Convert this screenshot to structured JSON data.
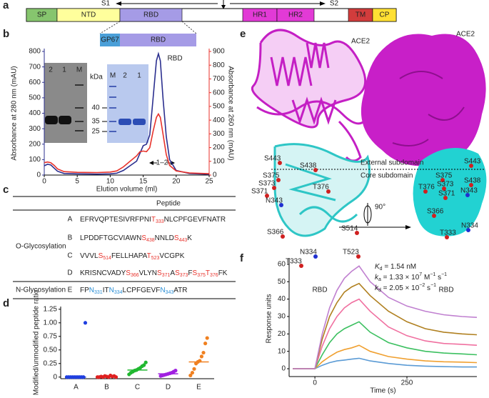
{
  "panel_labels": [
    "a",
    "b",
    "c",
    "d",
    "e",
    "f"
  ],
  "domains": {
    "s1": "S1",
    "s2": "S2",
    "segments": [
      {
        "label": "SP",
        "color": "#86c56e"
      },
      {
        "label": "NTD",
        "color": "#ffff9c"
      },
      {
        "label": "RBD",
        "color": "#a59be6"
      },
      {
        "label": "HR1",
        "color": "#e23ad6"
      },
      {
        "label": "HR2",
        "color": "#e23ad6"
      },
      {
        "label": "TM",
        "color": "#d23c3c"
      },
      {
        "label": "CP",
        "color": "#ffe033"
      }
    ],
    "construct": [
      {
        "label": "GP67",
        "color": "#4a9fd8"
      },
      {
        "label": "RBD",
        "color": "#a59be6"
      }
    ]
  },
  "chart_data": [
    {
      "type": "line",
      "x_label": "Elution volume (ml)",
      "y_label": "Absorbance at 280 nm (mAU)",
      "y2_label": "Absorbance at 260 nm (mAU)",
      "annotation": "RBD",
      "range_label": "1–2",
      "gel_1": {
        "lanes": [
          "2",
          "1",
          "M"
        ],
        "unit": "kDa",
        "markers": [
          40,
          35,
          25
        ]
      },
      "gel_2": {
        "lanes": [
          "M",
          "2",
          "1"
        ]
      },
      "x": [
        0,
        0.5,
        1,
        1.5,
        2,
        3,
        5,
        8,
        10,
        11,
        12,
        13,
        14,
        14.5,
        15,
        15.5,
        16,
        16.5,
        17,
        17.3,
        17.6,
        18,
        18.5,
        19,
        20,
        22,
        25
      ],
      "series": [
        {
          "color": "#2b2f8f",
          "values": [
            60,
            70,
            65,
            45,
            25,
            10,
            8,
            6,
            8,
            12,
            30,
            60,
            90,
            140,
            190,
            200,
            260,
            500,
            740,
            785,
            740,
            500,
            250,
            100,
            30,
            10,
            5
          ]
        },
        {
          "color": "#e8322b",
          "axis": "y2",
          "values": [
            90,
            95,
            90,
            70,
            45,
            25,
            20,
            18,
            22,
            30,
            60,
            100,
            140,
            170,
            175,
            170,
            200,
            320,
            420,
            445,
            420,
            300,
            150,
            70,
            30,
            15,
            10
          ]
        }
      ],
      "xlim": [
        0,
        25
      ],
      "xticks": [
        0,
        5,
        10,
        15,
        20,
        25
      ],
      "ylim": [
        0,
        800
      ],
      "yticks": [
        0,
        100,
        200,
        300,
        400,
        500,
        600,
        700,
        800
      ],
      "y2lim": [
        0,
        900
      ],
      "y2ticks": [
        0,
        100,
        200,
        300,
        400,
        500,
        600,
        700,
        800,
        900
      ]
    },
    {
      "type": "strip",
      "y_label": "Modified/unmodified peptide ratio",
      "categories": [
        "A",
        "B",
        "C",
        "D",
        "E"
      ],
      "colors": [
        "#1f3fe0",
        "#e02020",
        "#20b830",
        "#a020e0",
        "#f08020"
      ],
      "values": [
        [
          0,
          0,
          0,
          0,
          0,
          0,
          0,
          0,
          0,
          0,
          1.0
        ],
        [
          0,
          0,
          0.01,
          0,
          0.02,
          0.01,
          0,
          0.03,
          0.01,
          0.02,
          0
        ],
        [
          0.05,
          0.08,
          0.1,
          0.12,
          0.13,
          0.15,
          0.17,
          0.2,
          0.22,
          0.27
        ],
        [
          0.02,
          0.03,
          0.04,
          0.05,
          0.06,
          0.07,
          0.08,
          0.1,
          0.12
        ],
        [
          0.03,
          0.08,
          0.15,
          0.25,
          0.28,
          0.3,
          0.38,
          0.45,
          0.62,
          0.72
        ]
      ],
      "medians": [
        0,
        0.01,
        0.13,
        0.06,
        0.28
      ],
      "ylim": [
        -0.03,
        1.3
      ],
      "yticks": [
        0,
        0.25,
        {
          "value": 0.5,
          "label": "0.50"
        },
        0.75,
        {
          "value": 1,
          "label": "1.00"
        },
        1.25
      ]
    },
    {
      "type": "line",
      "x_label": "Time (s)",
      "y_label": "Response units",
      "annotations": [
        [
          "K",
          "d",
          " = 1.54 nM"
        ],
        [
          "k",
          "a",
          " = 1.33 × 10",
          "7",
          " M",
          "−1",
          " s",
          "−1"
        ],
        [
          "k",
          "d",
          " = 2.05 × 10",
          "−2",
          " s",
          "−1"
        ]
      ],
      "x": [
        -60,
        0,
        20,
        40,
        60,
        80,
        100,
        120,
        150,
        200,
        250,
        300,
        350,
        400,
        440
      ],
      "series": [
        {
          "color": "#5b9bd5",
          "values": [
            0,
            0,
            2,
            3.5,
            4.5,
            5,
            5.5,
            6,
            4.5,
            3,
            2,
            1.5,
            1.2,
            1,
            1
          ]
        },
        {
          "color": "#f0a030",
          "values": [
            0,
            0,
            4,
            7,
            9.5,
            11,
            12,
            13.5,
            10,
            7,
            5.5,
            4.5,
            4,
            3.8,
            3.5
          ]
        },
        {
          "color": "#3cc060",
          "values": [
            0,
            0,
            8,
            15,
            20,
            23,
            25,
            27,
            21,
            15,
            12,
            10,
            9,
            8.5,
            8
          ]
        },
        {
          "color": "#f070a0",
          "values": [
            0,
            0,
            13,
            23,
            30,
            35,
            38,
            40,
            33,
            24,
            19,
            16,
            14.5,
            14,
            13.5
          ]
        },
        {
          "color": "#b08020",
          "values": [
            0,
            0,
            17,
            30,
            38,
            44,
            47,
            49,
            42,
            33,
            27,
            23,
            21,
            20,
            19.5
          ]
        },
        {
          "color": "#c080d0",
          "values": [
            0,
            0,
            20,
            35,
            45,
            52,
            56,
            59,
            50,
            41,
            36,
            33,
            31,
            30,
            29.5
          ]
        }
      ],
      "xlim": [
        -70,
        440
      ],
      "xticks": [
        0,
        250
      ],
      "ylim": [
        -4.5,
        62
      ],
      "yticks": [
        0,
        10,
        20,
        30,
        40,
        50,
        60
      ]
    }
  ],
  "peptide_table": {
    "header": "Peptide",
    "groups": [
      {
        "label": "O-Glycosylation",
        "site_color": "#e8322b",
        "rows": [
          {
            "id": "A",
            "sequence": [
              "EFRVQPTESIVRFPNI",
              {
                "residue": "T",
                "position": 333
              },
              "NLCPFGEVFNATR"
            ]
          },
          {
            "id": "B",
            "sequence": [
              "LPDDFTGCVIAWN",
              {
                "residue": "S",
                "position": 438
              },
              "NNLD",
              {
                "residue": "S",
                "position": 443
              },
              "K"
            ]
          },
          {
            "id": "C",
            "sequence": [
              "VVVL",
              {
                "residue": "S",
                "position": 514
              },
              "FELLHAPA",
              {
                "residue": "T",
                "position": 523
              },
              "VCGPK"
            ]
          },
          {
            "id": "D",
            "sequence": [
              "KRISNCVADY",
              {
                "residue": "S",
                "position": 366
              },
              "VLYN",
              {
                "residue": "S",
                "position": 371
              },
              "A",
              {
                "residue": "S",
                "position": 373
              },
              "F",
              {
                "residue": "S",
                "position": 375
              },
              {
                "residue": "T",
                "position": 376
              },
              "FK"
            ]
          }
        ]
      },
      {
        "label": "N-Glycosylation",
        "site_color": "#2b8fd6",
        "rows": [
          {
            "id": "E",
            "sequence": [
              "FP",
              {
                "residue": "N",
                "position": 331
              },
              "IT",
              {
                "residue": "N",
                "position": 334
              },
              "LCPFGEVF",
              {
                "residue": "N",
                "position": 343
              },
              "ATR"
            ]
          }
        ]
      }
    ]
  },
  "structure": {
    "ace2_labels": [
      "ACE2",
      "ACE2"
    ],
    "rbd_labels": [
      "RBD",
      "RBD"
    ],
    "subdomains": [
      "External subdomain",
      "Core subdomain"
    ],
    "rotation": "90°",
    "left_sites": [
      "S443",
      "S438",
      "S375",
      "T376",
      "S373",
      "S371",
      "N343",
      "S514",
      "S366",
      "N334",
      "T523",
      "T333"
    ],
    "right_sites": [
      "S443",
      "S375",
      "S438",
      "T376",
      "S373",
      "N343",
      "S371",
      "S366",
      "T333",
      "N334"
    ]
  }
}
